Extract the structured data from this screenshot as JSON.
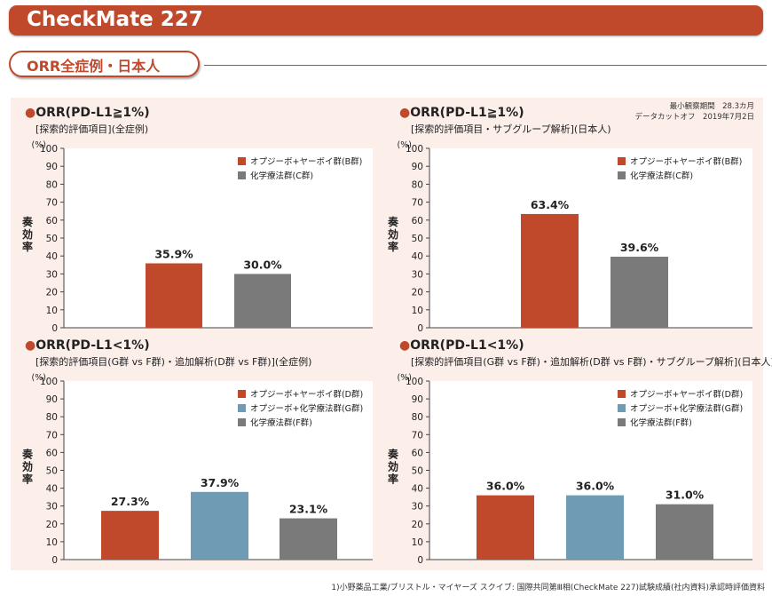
{
  "header": {
    "title": "CheckMate 227"
  },
  "section": {
    "title": "ORR全症例・日本人"
  },
  "meta": {
    "line1": "最小観察期間　28.3カ月",
    "line2": "データカットオフ　2019年7月2日"
  },
  "footnote": "1)小野薬品工業/ブリストル・マイヤーズ スクイブ: 国際共同第Ⅲ相(CheckMate 227)試験成績(社内資料)承認時評価資料",
  "colors": {
    "accent": "#c0492b",
    "D": "#c0492b",
    "G": "#6f9bb5",
    "C": "#7a7a7a",
    "panel": "#fcefea"
  },
  "chart_data": [
    {
      "type": "bar",
      "title": "●ORR(PD-L1≧1%)",
      "subtitle": "[探索的評価項目](全症例)",
      "ylabel": "奏効率",
      "yunit": "(%)",
      "ylim": [
        0,
        100
      ],
      "yticks": [
        0,
        10,
        20,
        30,
        40,
        50,
        60,
        70,
        80,
        90,
        100
      ],
      "grid": false,
      "legend_position": "top-right",
      "series": [
        {
          "name": "オプジーボ+ヤーボイ群(B群)",
          "color": "#c0492b",
          "value": 35.9,
          "label": "35.9%"
        },
        {
          "name": "化学療法群(C群)",
          "color": "#7a7a7a",
          "value": 30.0,
          "label": "30.0%"
        }
      ]
    },
    {
      "type": "bar",
      "title": "●ORR(PD-L1≧1%)",
      "subtitle": "[探索的評価項目・サブグループ解析](日本人)",
      "ylabel": "奏効率",
      "yunit": "(%)",
      "ylim": [
        0,
        100
      ],
      "yticks": [
        0,
        10,
        20,
        30,
        40,
        50,
        60,
        70,
        80,
        90,
        100
      ],
      "grid": false,
      "legend_position": "top-right",
      "series": [
        {
          "name": "オプジーボ+ヤーボイ群(B群)",
          "color": "#c0492b",
          "value": 63.4,
          "label": "63.4%"
        },
        {
          "name": "化学療法群(C群)",
          "color": "#7a7a7a",
          "value": 39.6,
          "label": "39.6%"
        }
      ]
    },
    {
      "type": "bar",
      "title": "●ORR(PD-L1<1%)",
      "subtitle": "[探索的評価項目(G群 vs F群)・追加解析(D群 vs F群)](全症例)",
      "ylabel": "奏効率",
      "yunit": "(%)",
      "ylim": [
        0,
        100
      ],
      "yticks": [
        0,
        10,
        20,
        30,
        40,
        50,
        60,
        70,
        80,
        90,
        100
      ],
      "grid": false,
      "legend_position": "top-right",
      "series": [
        {
          "name": "オプジーボ+ヤーボイ群(D群)",
          "color": "#c0492b",
          "value": 27.3,
          "label": "27.3%"
        },
        {
          "name": "オプジーボ+化学療法群(G群)",
          "color": "#6f9bb5",
          "value": 37.9,
          "label": "37.9%"
        },
        {
          "name": "化学療法群(F群)",
          "color": "#7a7a7a",
          "value": 23.1,
          "label": "23.1%"
        }
      ]
    },
    {
      "type": "bar",
      "title": "●ORR(PD-L1<1%)",
      "subtitle": "[探索的評価項目(G群 vs F群)・追加解析(D群 vs F群)・サブグループ解析](日本人)",
      "ylabel": "奏効率",
      "yunit": "(%)",
      "ylim": [
        0,
        100
      ],
      "yticks": [
        0,
        10,
        20,
        30,
        40,
        50,
        60,
        70,
        80,
        90,
        100
      ],
      "grid": false,
      "legend_position": "top-right",
      "series": [
        {
          "name": "オプジーボ+ヤーボイ群(D群)",
          "color": "#c0492b",
          "value": 36.0,
          "label": "36.0%"
        },
        {
          "name": "オプジーボ+化学療法群(G群)",
          "color": "#6f9bb5",
          "value": 36.0,
          "label": "36.0%"
        },
        {
          "name": "化学療法群(F群)",
          "color": "#7a7a7a",
          "value": 31.0,
          "label": "31.0%"
        }
      ]
    }
  ]
}
